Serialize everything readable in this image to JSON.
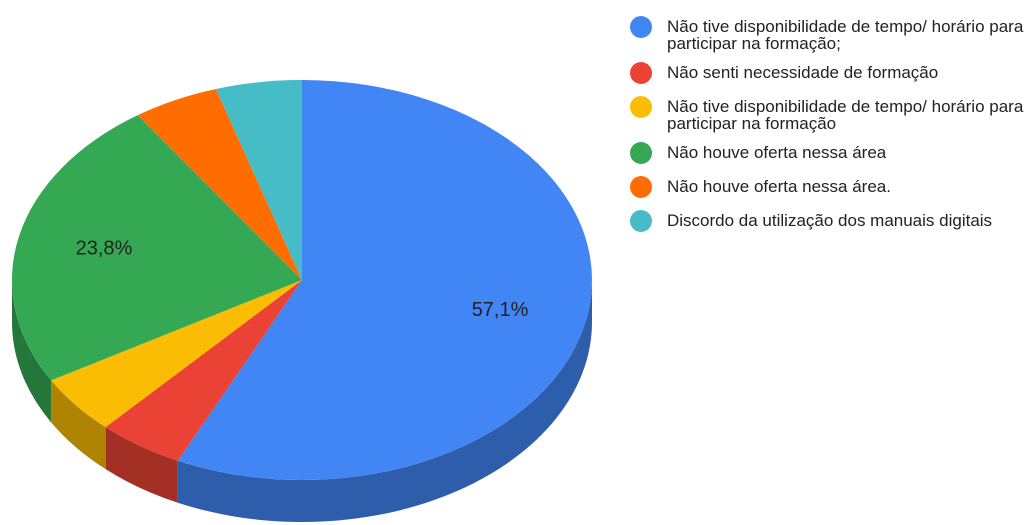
{
  "chart_data": {
    "type": "pie",
    "categories": [
      "Não tive disponibilidade de tempo/ horário para participar na formação;",
      "Não senti necessidade de formação",
      "Não tive disponibilidade de tempo/ horário para participar na formação",
      "Não houve oferta nessa área",
      "Não houve oferta nessa área.",
      "Discordo da utilização dos manuais digitais"
    ],
    "values": [
      57.1,
      4.8,
      4.8,
      23.8,
      4.8,
      4.8
    ],
    "value_labels": [
      "57,1%",
      null,
      null,
      "23,8%",
      null,
      null
    ],
    "colors": [
      "#4285f4",
      "#ea4335",
      "#fbbc04",
      "#34a853",
      "#ff6d01",
      "#46bdc6"
    ],
    "legend": "right"
  }
}
